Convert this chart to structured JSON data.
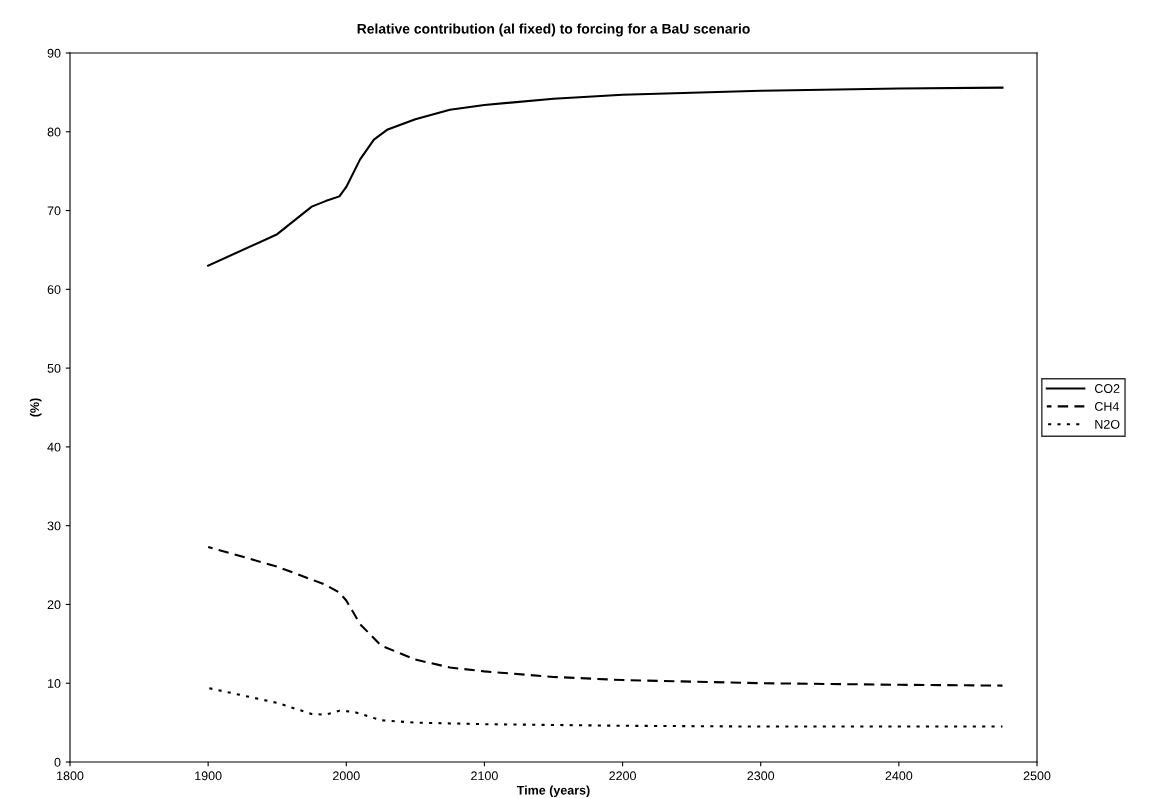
{
  "chart_data": {
    "type": "line",
    "title": "Relative contribution (al fixed) to forcing for a BaU scenario",
    "xlabel": "Time (years)",
    "ylabel": "(%)",
    "xlim": [
      1800,
      2500
    ],
    "xticks": [
      1800,
      1900,
      2000,
      2100,
      2200,
      2300,
      2400,
      2500
    ],
    "ylim": [
      0,
      90
    ],
    "yticks": [
      0,
      10,
      20,
      30,
      40,
      50,
      60,
      70,
      80,
      90
    ],
    "grid": false,
    "legend": "right",
    "marker": "none",
    "series": [
      {
        "name": "CO2",
        "color": "#000000",
        "line_style": "solid",
        "x": [
          1900,
          1950,
          1975,
          1985,
          1995,
          2000,
          2010,
          2020,
          2030,
          2050,
          2075,
          2100,
          2150,
          2200,
          2300,
          2400,
          2475
        ],
        "values": [
          63,
          67,
          70.5,
          71.2,
          71.8,
          73,
          76.5,
          79,
          80.3,
          81.6,
          82.8,
          83.4,
          84.2,
          84.7,
          85.2,
          85.5,
          85.6
        ]
      },
      {
        "name": "CH4",
        "color": "#000000",
        "line_style": "dashed",
        "x": [
          1900,
          1950,
          1985,
          1995,
          2000,
          2010,
          2025,
          2050,
          2075,
          2100,
          2150,
          2200,
          2300,
          2400,
          2475
        ],
        "values": [
          27.3,
          24.8,
          22.5,
          21.5,
          20.5,
          17.5,
          14.8,
          13,
          12,
          11.5,
          10.8,
          10.4,
          10,
          9.8,
          9.7
        ]
      },
      {
        "name": "N2O",
        "color": "#000000",
        "line_style": "dotted",
        "x": [
          1900,
          1950,
          1975,
          1985,
          1995,
          2005,
          2025,
          2050,
          2100,
          2200,
          2300,
          2475
        ],
        "values": [
          9.4,
          7.5,
          6.1,
          6.0,
          6.5,
          6.4,
          5.3,
          5.0,
          4.8,
          4.6,
          4.5,
          4.5
        ]
      }
    ]
  }
}
